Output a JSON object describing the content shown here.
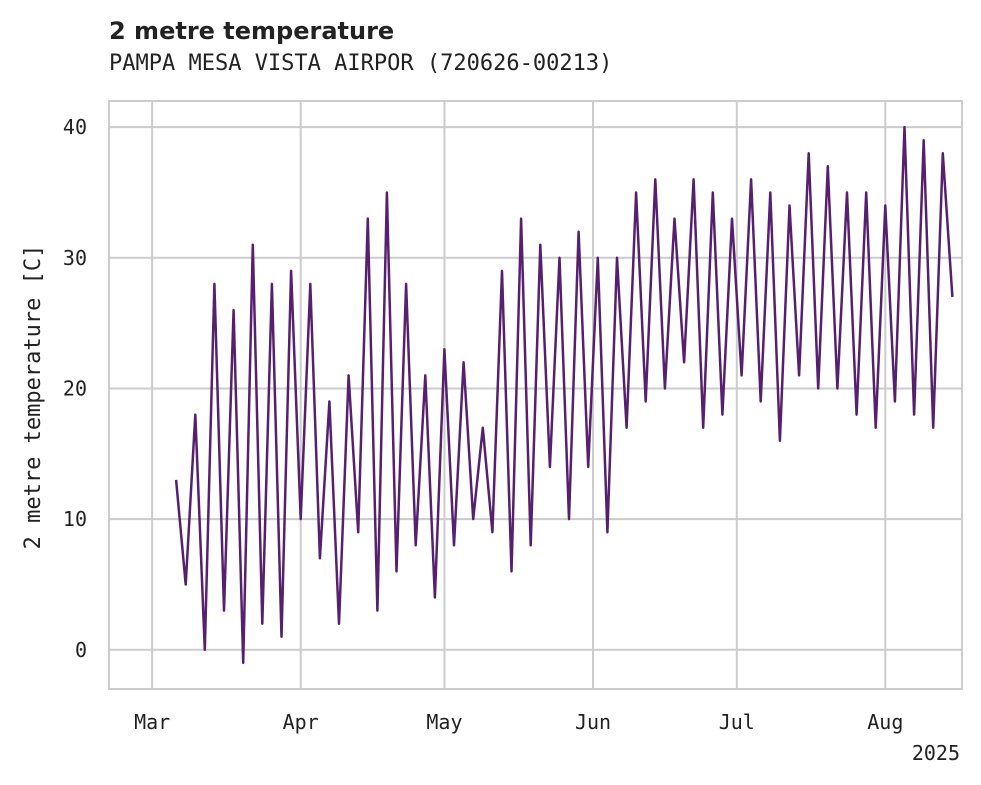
{
  "chart_data": {
    "type": "line",
    "title": "2 metre temperature",
    "subtitle": "PAMPA MESA VISTA AIRPOR (720626-00213)",
    "ylabel": "2 metre temperature [C]",
    "xlabel": "",
    "x_year_label": "2025",
    "x_range": [
      "2025-02-20",
      "2025-08-17"
    ],
    "ylim": [
      -3,
      42
    ],
    "yticks": [
      0,
      10,
      20,
      30,
      40
    ],
    "xticks": [
      {
        "date": "2025-03-01",
        "label": "Mar"
      },
      {
        "date": "2025-04-01",
        "label": "Apr"
      },
      {
        "date": "2025-05-01",
        "label": "May"
      },
      {
        "date": "2025-06-01",
        "label": "Jun"
      },
      {
        "date": "2025-07-01",
        "label": "Jul"
      },
      {
        "date": "2025-08-01",
        "label": "Aug"
      }
    ],
    "grid": true,
    "line_color": "#57206f",
    "series": [
      {
        "x": [
          "2025-03-06",
          "2025-03-08",
          "2025-03-10",
          "2025-03-12",
          "2025-03-14",
          "2025-03-16",
          "2025-03-18",
          "2025-03-20",
          "2025-03-22",
          "2025-03-24",
          "2025-03-26",
          "2025-03-28",
          "2025-03-30",
          "2025-04-01",
          "2025-04-03",
          "2025-04-05",
          "2025-04-07",
          "2025-04-09",
          "2025-04-11",
          "2025-04-13",
          "2025-04-15",
          "2025-04-17",
          "2025-04-19",
          "2025-04-21",
          "2025-04-23",
          "2025-04-25",
          "2025-04-27",
          "2025-04-29",
          "2025-05-01",
          "2025-05-03",
          "2025-05-05",
          "2025-05-07",
          "2025-05-09",
          "2025-05-11",
          "2025-05-13",
          "2025-05-15",
          "2025-05-17",
          "2025-05-19",
          "2025-05-21",
          "2025-05-23",
          "2025-05-25",
          "2025-05-27",
          "2025-05-29",
          "2025-05-31",
          "2025-06-02",
          "2025-06-04",
          "2025-06-06",
          "2025-06-08",
          "2025-06-10",
          "2025-06-12",
          "2025-06-14",
          "2025-06-16",
          "2025-06-18",
          "2025-06-20",
          "2025-06-22",
          "2025-06-24",
          "2025-06-26",
          "2025-06-28",
          "2025-06-30",
          "2025-07-02",
          "2025-07-04",
          "2025-07-06",
          "2025-07-08",
          "2025-07-10",
          "2025-07-12",
          "2025-07-14",
          "2025-07-16",
          "2025-07-18",
          "2025-07-20",
          "2025-07-22",
          "2025-07-24",
          "2025-07-26",
          "2025-07-28",
          "2025-07-30",
          "2025-08-01",
          "2025-08-03",
          "2025-08-05",
          "2025-08-07",
          "2025-08-09",
          "2025-08-11",
          "2025-08-13",
          "2025-08-15"
        ],
        "y": [
          13,
          5,
          18,
          0,
          28,
          3,
          26,
          -1,
          31,
          2,
          28,
          1,
          29,
          10,
          28,
          7,
          19,
          2,
          21,
          9,
          33,
          3,
          35,
          6,
          28,
          8,
          21,
          4,
          23,
          8,
          22,
          10,
          17,
          9,
          29,
          6,
          33,
          8,
          31,
          14,
          30,
          10,
          32,
          14,
          30,
          9,
          30,
          17,
          35,
          19,
          36,
          20,
          33,
          22,
          36,
          17,
          35,
          18,
          33,
          21,
          36,
          19,
          35,
          16,
          34,
          21,
          38,
          20,
          37,
          20,
          35,
          18,
          35,
          17,
          34,
          19,
          40,
          18,
          39,
          17,
          38,
          27
        ]
      }
    ]
  }
}
